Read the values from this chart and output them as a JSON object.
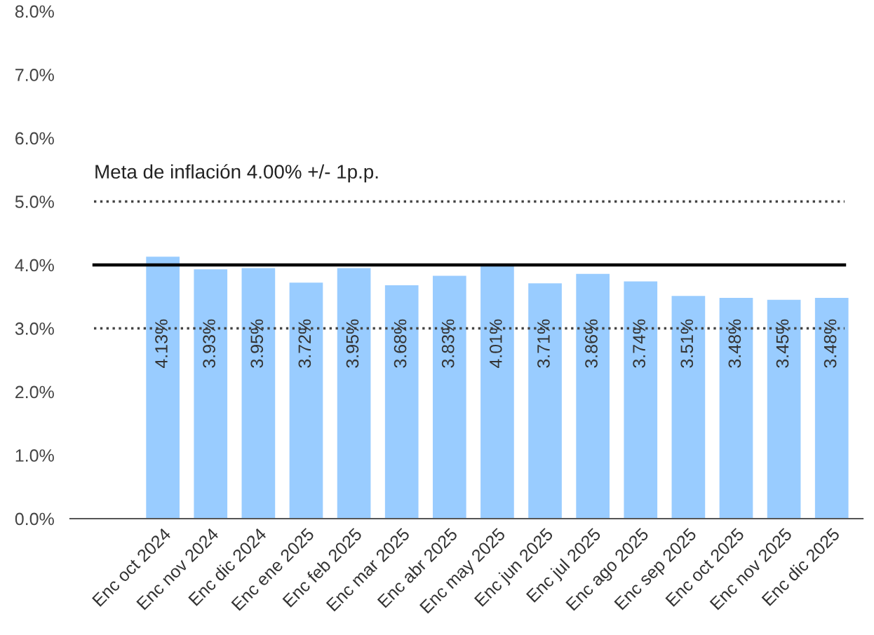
{
  "chart_data": {
    "type": "bar",
    "categories": [
      "Enc oct 2024",
      "Enc nov 2024",
      "Enc dic 2024",
      "Enc ene 2025",
      "Enc feb 2025",
      "Enc mar 2025",
      "Enc abr 2025",
      "Enc may 2025",
      "Enc jun 2025",
      "Enc jul 2025",
      "Enc ago 2025",
      "Enc sep 2025",
      "Enc oct 2025",
      "Enc nov 2025",
      "Enc dic 2025"
    ],
    "values": [
      4.13,
      3.93,
      3.95,
      3.72,
      3.95,
      3.68,
      3.83,
      4.01,
      3.71,
      3.86,
      3.74,
      3.51,
      3.48,
      3.45,
      3.48
    ],
    "color": "#99ccff",
    "value_labels": [
      "4.13%",
      "3.93%",
      "3.95%",
      "3.72%",
      "3.95%",
      "3.68%",
      "3.83%",
      "4.01%",
      "3.71%",
      "3.86%",
      "3.74%",
      "3.51%",
      "3.48%",
      "3.45%",
      "3.48%"
    ],
    "ylim": [
      0,
      8
    ],
    "yticks": [
      {
        "value": 0,
        "label": "0.0%"
      },
      {
        "value": 1,
        "label": "1.0%"
      },
      {
        "value": 2,
        "label": "2.0%"
      },
      {
        "value": 3,
        "label": "3.0%"
      },
      {
        "value": 4,
        "label": "4.0%"
      },
      {
        "value": 5,
        "label": "5.0%"
      },
      {
        "value": 6,
        "label": "6.0%"
      },
      {
        "value": 7,
        "label": "7.0%"
      },
      {
        "value": 8,
        "label": "8.0%"
      }
    ],
    "ref_lines": [
      {
        "axis": "y",
        "value": 5,
        "color": "#444444",
        "line_style": "dotted"
      },
      {
        "axis": "y",
        "value": 4,
        "color": "#000000",
        "line_style": "solid"
      },
      {
        "axis": "y",
        "value": 3,
        "color": "#444444",
        "line_style": "dotted"
      }
    ],
    "annotations": [
      {
        "text": "Meta de inflación 4.00% +/- 1p.p.",
        "y": 5
      }
    ],
    "grid": false,
    "legend": false
  }
}
